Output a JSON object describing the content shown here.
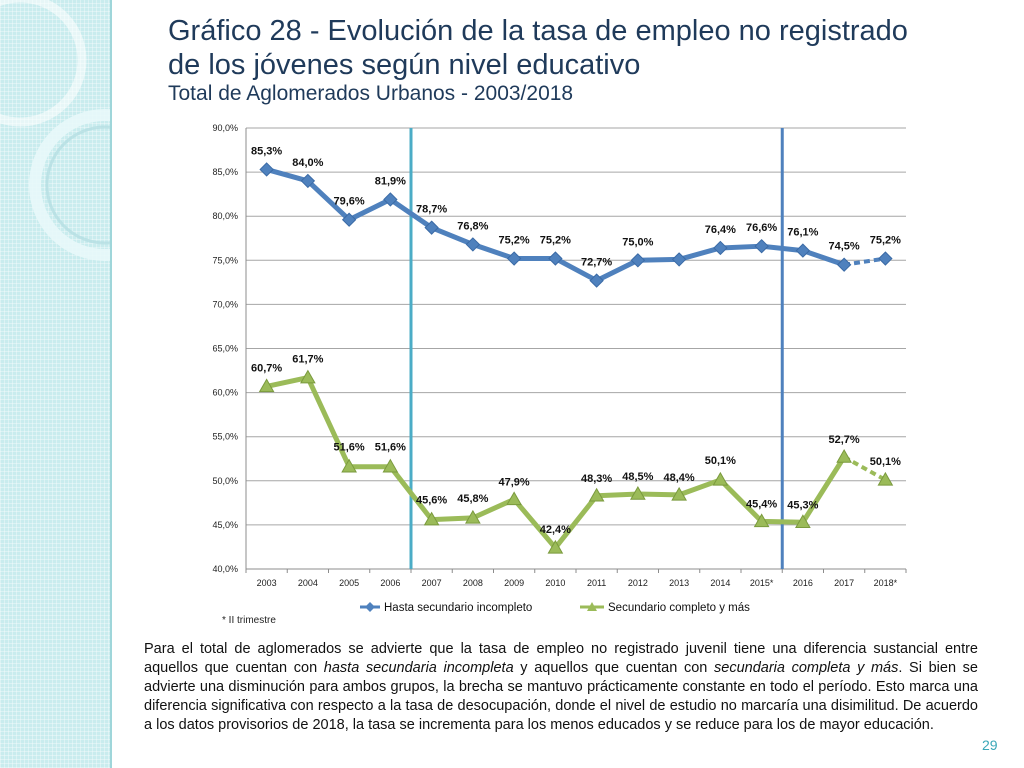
{
  "title": {
    "line1": "Gráfico 28 - Evolución de la tasa de empleo no registrado",
    "line2": "de los jóvenes según nivel educativo",
    "line3": "Total de Aglomerados Urbanos - 2003/2018"
  },
  "chart_data": {
    "type": "line",
    "categories": [
      "2003",
      "2004",
      "2005",
      "2006",
      "2007",
      "2008",
      "2009",
      "2010",
      "2011",
      "2012",
      "2013",
      "2014",
      "2015*",
      "2016",
      "2017",
      "2018*"
    ],
    "ylim": [
      40,
      90
    ],
    "yticks": [
      "40,0%",
      "45,0%",
      "50,0%",
      "55,0%",
      "60,0%",
      "65,0%",
      "70,0%",
      "75,0%",
      "80,0%",
      "85,0%",
      "90,0%"
    ],
    "grid": true,
    "legend_position": "bottom",
    "vertical_lines": [
      {
        "between": [
          "2006",
          "2007"
        ],
        "color": "#4bacc6"
      },
      {
        "between": [
          "2015*",
          "2016"
        ],
        "color": "#4f81bd"
      }
    ],
    "series": [
      {
        "name": "Hasta secundario incompleto",
        "color": "#4f81bd",
        "marker": "diamond",
        "values": [
          85.3,
          84.0,
          79.6,
          81.9,
          78.7,
          76.8,
          75.2,
          75.2,
          72.7,
          75.0,
          75.1,
          76.4,
          76.6,
          76.1,
          74.5,
          75.2
        ],
        "labels": [
          "85,3%",
          "84,0%",
          "79,6%",
          "81,9%",
          "78,7%",
          "76,8%",
          "75,2%",
          "75,2%",
          "72,7%",
          "75,0%",
          null,
          "76,4%",
          "76,6%",
          "76,1%",
          "74,5%",
          "75,2%"
        ],
        "dashed_last": true
      },
      {
        "name": "Secundario completo y más",
        "color": "#9bbb59",
        "marker": "triangle",
        "values": [
          60.7,
          61.7,
          51.6,
          51.6,
          45.6,
          45.8,
          47.9,
          42.4,
          48.3,
          48.5,
          48.4,
          50.1,
          45.4,
          45.3,
          52.7,
          50.1
        ],
        "labels": [
          "60,7%",
          "61,7%",
          "51,6%",
          "51,6%",
          "45,6%",
          "45,8%",
          "47,9%",
          "42,4%",
          "48,3%",
          "48,5%",
          "48,4%",
          "50,1%",
          "45,4%",
          "45,3%",
          "52,7%",
          "50,1%"
        ],
        "dashed_last": true
      }
    ]
  },
  "footnote": "* II trimestre",
  "body_text": {
    "p1": "Para el total de aglomerados se advierte que la tasa de empleo no registrado juvenil tiene una diferencia sustancial entre aquellos que cuentan con ",
    "em1": "hasta secundaria incompleta",
    "p2": " y aquellos que cuentan con ",
    "em2": "secundaria completa y más",
    "p3": ". Si bien se advierte una disminución para ambos grupos, la brecha se mantuvo prácticamente constante en todo el período.  Esto marca una diferencia significativa con respecto a la tasa de desocupación, donde el nivel de estudio no marcaría una disimilitud.  De acuerdo a los datos provisorios de 2018, la tasa se incrementa para los menos educados y se reduce para los de mayor educación."
  },
  "page_number": "29",
  "colors": {
    "title": "#1f3a5a",
    "accent": "#4bacc6",
    "strip": "#c9ecee"
  }
}
